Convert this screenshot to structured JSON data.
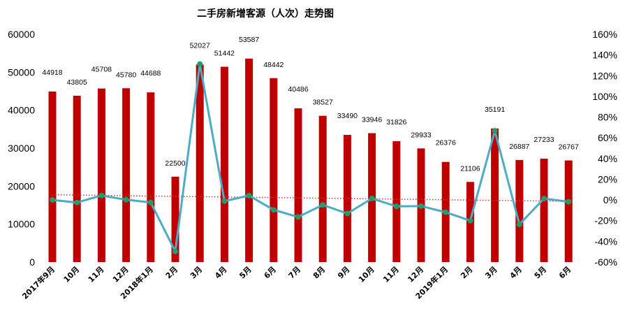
{
  "chart_data": {
    "type": "bar+line",
    "title": "二手房新增客源（人次）走势图",
    "categories": [
      "2017年9月",
      "10月",
      "11月",
      "12月",
      "2018年1月",
      "2月",
      "3月",
      "4月",
      "5月",
      "6月",
      "7月",
      "8月",
      "9月",
      "10月",
      "11月",
      "12月",
      "2019年1月",
      "2月",
      "3月",
      "4月",
      "5月",
      "6月"
    ],
    "series": [
      {
        "type": "bar",
        "axis": "left",
        "color": "#C00000",
        "values": [
          44918,
          43805,
          45708,
          45780,
          44688,
          22500,
          52027,
          51442,
          53587,
          48442,
          40486,
          38527,
          33490,
          33946,
          31826,
          29933,
          26376,
          21106,
          35191,
          26887,
          27233,
          26767
        ]
      },
      {
        "type": "line",
        "axis": "right",
        "color": "#4BACC6",
        "marker_color": "#1E9E6A",
        "values": [
          0,
          -2.5,
          4.3,
          0.2,
          -2.4,
          -49.7,
          131.2,
          -1.1,
          4.2,
          -9.6,
          -16.4,
          -4.8,
          -13.1,
          1.4,
          -6.2,
          -5.9,
          -11.9,
          -20.0,
          66.7,
          -23.6,
          1.3,
          -1.7
        ]
      },
      {
        "type": "linear-trendline",
        "of": "line",
        "color": "#E03030",
        "style": "dotted"
      }
    ],
    "y_left": {
      "range": [
        0,
        60000
      ],
      "ticks": [
        "0",
        "10000",
        "20000",
        "30000",
        "40000",
        "50000",
        "60000"
      ]
    },
    "y_right": {
      "range": [
        -60,
        160
      ],
      "unit": "%",
      "ticks": [
        "-60%",
        "-40%",
        "-20%",
        "0%",
        "20%",
        "40%",
        "60%",
        "80%",
        "100%",
        "120%",
        "140%",
        "160%"
      ]
    },
    "grid": false,
    "legend": "none",
    "data_labels": "bar values"
  }
}
